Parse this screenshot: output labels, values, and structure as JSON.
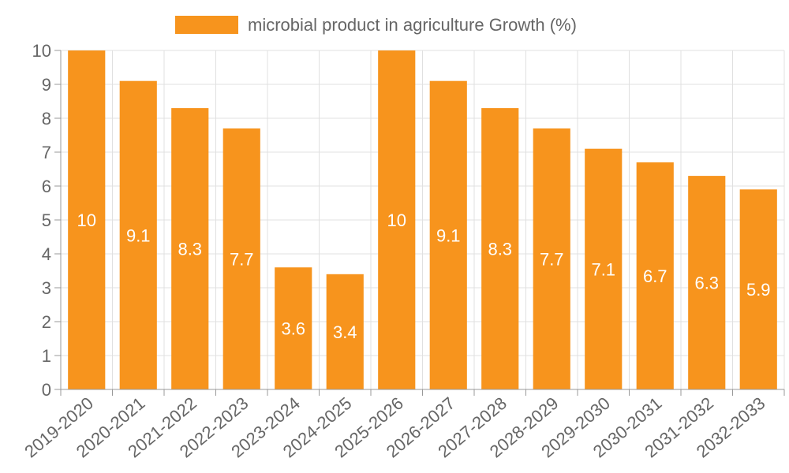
{
  "chart_data": {
    "type": "bar",
    "title": "",
    "xlabel": "",
    "ylabel": "",
    "ylim": [
      0,
      10
    ],
    "y_ticks": [
      0,
      1,
      2,
      3,
      4,
      5,
      6,
      7,
      8,
      9,
      10
    ],
    "grid": true,
    "legend_position": "top-center",
    "categories": [
      "2019-2020",
      "2020-2021",
      "2021-2022",
      "2022-2023",
      "2023-2024",
      "2024-2025",
      "2025-2026",
      "2026-2027",
      "2027-2028",
      "2028-2029",
      "2029-2030",
      "2030-2031",
      "2031-2032",
      "2032-2033"
    ],
    "series": [
      {
        "name": "microbial product in agriculture Growth (%)",
        "color": "#f7941d",
        "values": [
          10,
          9.1,
          8.3,
          7.7,
          3.6,
          3.4,
          10,
          9.1,
          8.3,
          7.7,
          7.1,
          6.7,
          6.3,
          5.9
        ]
      }
    ]
  }
}
